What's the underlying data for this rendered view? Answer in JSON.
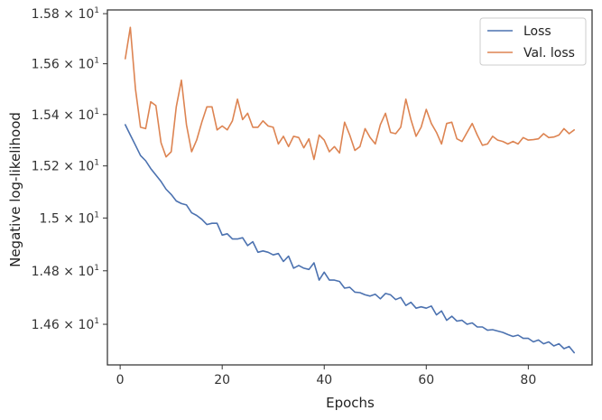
{
  "chart_data": {
    "type": "line",
    "xlabel": "Epochs",
    "ylabel": "Negative log-likelihood",
    "xlim": [
      -2.5,
      92.5
    ],
    "ylim": [
      14.45,
      15.815
    ],
    "y_scale": "log",
    "x_ticks": [
      0,
      20,
      40,
      60,
      80
    ],
    "y_ticks": [
      {
        "value": 14.6,
        "mantissa": "1.46",
        "exp": "1"
      },
      {
        "value": 14.8,
        "mantissa": "1.48",
        "exp": "1"
      },
      {
        "value": 15.0,
        "mantissa": "1.5",
        "exp": "1"
      },
      {
        "value": 15.2,
        "mantissa": "1.52",
        "exp": "1"
      },
      {
        "value": 15.4,
        "mantissa": "1.54",
        "exp": "1"
      },
      {
        "value": 15.6,
        "mantissa": "1.56",
        "exp": "1"
      },
      {
        "value": 15.8,
        "mantissa": "1.58",
        "exp": "1"
      }
    ],
    "times_sign": "×",
    "grid": false,
    "legend_position": "top-right",
    "x": [
      1,
      2,
      3,
      4,
      5,
      6,
      7,
      8,
      9,
      10,
      11,
      12,
      13,
      14,
      15,
      16,
      17,
      18,
      19,
      20,
      21,
      22,
      23,
      24,
      25,
      26,
      27,
      28,
      29,
      30,
      31,
      32,
      33,
      34,
      35,
      36,
      37,
      38,
      39,
      40,
      41,
      42,
      43,
      44,
      45,
      46,
      47,
      48,
      49,
      50,
      51,
      52,
      53,
      54,
      55,
      56,
      57,
      58,
      59,
      60,
      61,
      62,
      63,
      64,
      65,
      66,
      67,
      68,
      69,
      70,
      71,
      72,
      73,
      74,
      75,
      76,
      77,
      78,
      79,
      80,
      81,
      82,
      83,
      84,
      85,
      86,
      87,
      88,
      89
    ],
    "series": [
      {
        "name": "Loss",
        "color": "#4c72b0",
        "values": [
          15.36,
          15.32,
          15.28,
          15.24,
          15.22,
          15.19,
          15.165,
          15.14,
          15.11,
          15.09,
          15.065,
          15.055,
          15.05,
          15.02,
          15.01,
          14.995,
          14.975,
          14.98,
          14.98,
          14.935,
          14.94,
          14.92,
          14.92,
          14.925,
          14.895,
          14.91,
          14.87,
          14.875,
          14.87,
          14.86,
          14.865,
          14.835,
          14.855,
          14.81,
          14.82,
          14.81,
          14.805,
          14.83,
          14.765,
          14.795,
          14.765,
          14.765,
          14.76,
          14.735,
          14.738,
          14.72,
          14.718,
          14.71,
          14.705,
          14.712,
          14.695,
          14.715,
          14.71,
          14.692,
          14.7,
          14.67,
          14.682,
          14.66,
          14.665,
          14.66,
          14.668,
          14.635,
          14.65,
          14.615,
          14.63,
          14.612,
          14.615,
          14.6,
          14.605,
          14.59,
          14.59,
          14.578,
          14.58,
          14.575,
          14.57,
          14.562,
          14.555,
          14.56,
          14.548,
          14.548,
          14.535,
          14.542,
          14.528,
          14.535,
          14.52,
          14.528,
          14.51,
          14.518,
          14.495
        ]
      },
      {
        "name": "Val. loss",
        "color": "#dd8452",
        "values": [
          15.62,
          15.745,
          15.5,
          15.35,
          15.345,
          15.45,
          15.435,
          15.29,
          15.235,
          15.255,
          15.43,
          15.535,
          15.36,
          15.255,
          15.3,
          15.37,
          15.43,
          15.43,
          15.34,
          15.355,
          15.34,
          15.375,
          15.46,
          15.38,
          15.405,
          15.35,
          15.35,
          15.375,
          15.355,
          15.35,
          15.285,
          15.315,
          15.275,
          15.315,
          15.31,
          15.27,
          15.305,
          15.225,
          15.32,
          15.3,
          15.255,
          15.275,
          15.25,
          15.37,
          15.32,
          15.26,
          15.275,
          15.345,
          15.31,
          15.285,
          15.36,
          15.405,
          15.33,
          15.325,
          15.35,
          15.46,
          15.38,
          15.315,
          15.35,
          15.42,
          15.365,
          15.33,
          15.285,
          15.365,
          15.37,
          15.305,
          15.295,
          15.33,
          15.365,
          15.32,
          15.28,
          15.285,
          15.315,
          15.3,
          15.295,
          15.285,
          15.295,
          15.285,
          15.31,
          15.3,
          15.302,
          15.305,
          15.325,
          15.31,
          15.312,
          15.32,
          15.345,
          15.325,
          15.34
        ]
      }
    ]
  }
}
